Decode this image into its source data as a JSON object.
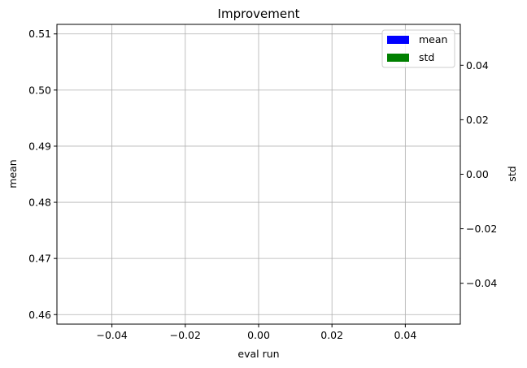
{
  "chart_data": {
    "type": "bar",
    "title": "Improvement",
    "xlabel": "eval run",
    "ylabel": "mean",
    "y2label": "std",
    "xlim": [
      -0.055,
      0.055
    ],
    "ylim": [
      0.4583,
      0.5117
    ],
    "y2lim": [
      -0.055,
      0.055
    ],
    "x_ticks": [
      "−0.04",
      "−0.02",
      "0.00",
      "0.02",
      "0.04"
    ],
    "x_tick_values": [
      -0.04,
      -0.02,
      0.0,
      0.02,
      0.04
    ],
    "y_ticks": [
      "0.46",
      "0.47",
      "0.48",
      "0.49",
      "0.50",
      "0.51"
    ],
    "y_tick_values": [
      0.46,
      0.47,
      0.48,
      0.49,
      0.5,
      0.51
    ],
    "y2_ticks": [
      "−0.04",
      "−0.02",
      "0.00",
      "0.02",
      "0.04"
    ],
    "y2_tick_values": [
      -0.04,
      -0.02,
      0.0,
      0.02,
      0.04
    ],
    "grid": true,
    "legend_position": "top-right",
    "series": [
      {
        "name": "mean",
        "color": "#0000ff",
        "axis": "left",
        "values": []
      },
      {
        "name": "std",
        "color": "#008000",
        "axis": "right",
        "values": []
      }
    ]
  }
}
